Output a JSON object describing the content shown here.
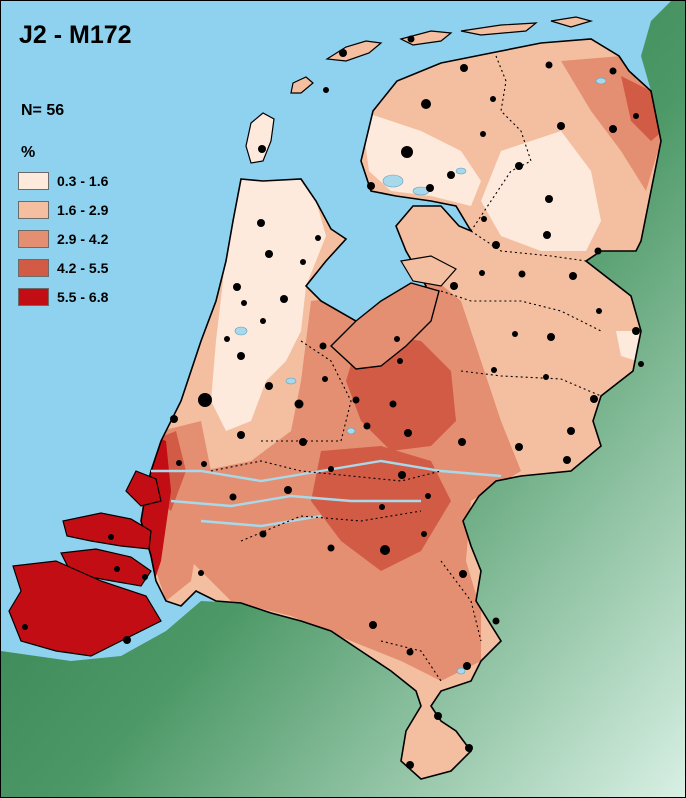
{
  "map": {
    "title": "J2 - M172",
    "sample_label": "N= 56",
    "unit_label": "%",
    "legend": [
      {
        "label": "0.3 - 1.6",
        "color": "#fdeadc"
      },
      {
        "label": "1.6 - 2.9",
        "color": "#f4bfa1"
      },
      {
        "label": "2.9 - 4.2",
        "color": "#e48f72"
      },
      {
        "label": "4.2 - 5.5",
        "color": "#d25b46"
      },
      {
        "label": "5.5 - 6.8",
        "color": "#c30d14"
      }
    ],
    "colors": {
      "sea": "#8fd2ef",
      "land_outside": "#2c7a45",
      "border": "#000000",
      "province_border": "#000000",
      "rivers": "#a8d8ea",
      "sample_points": "#000000"
    }
  }
}
